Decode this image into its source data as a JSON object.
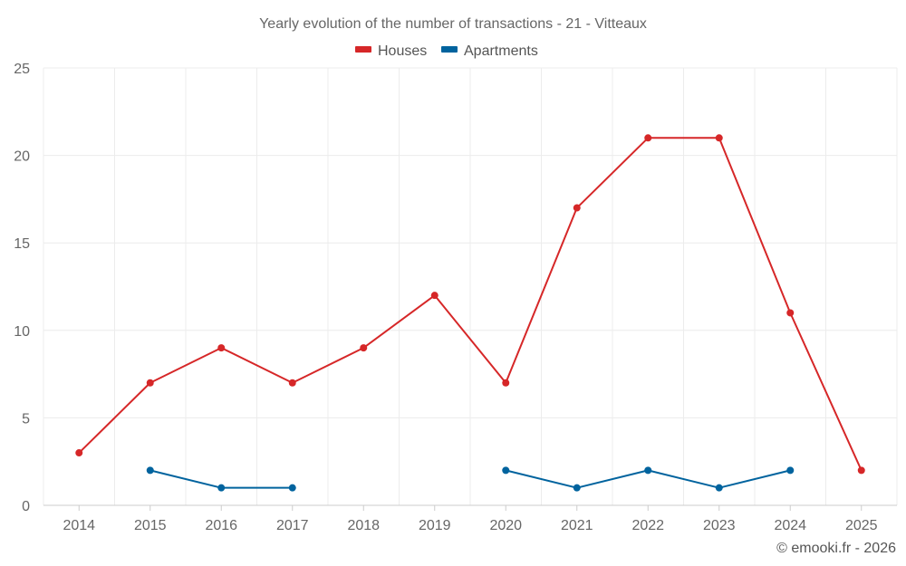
{
  "chart_data": {
    "type": "line",
    "title": "Yearly evolution of the number of transactions - 21 - Vitteaux",
    "categories": [
      "2014",
      "2015",
      "2016",
      "2017",
      "2018",
      "2019",
      "2020",
      "2021",
      "2022",
      "2023",
      "2024",
      "2025"
    ],
    "ylim": [
      0,
      25
    ],
    "yticks": [
      0,
      5,
      10,
      15,
      20,
      25
    ],
    "grid": true,
    "legend_position": "top-center",
    "series": [
      {
        "name": "Houses",
        "color": "#d62728",
        "values": [
          3,
          7,
          9,
          7,
          9,
          12,
          7,
          17,
          21,
          21,
          11,
          2
        ]
      },
      {
        "name": "Apartments",
        "color": "#00639e",
        "values": [
          null,
          2,
          1,
          1,
          null,
          null,
          2,
          1,
          2,
          1,
          2,
          null
        ]
      }
    ],
    "credit": "© emooki.fr - 2026"
  }
}
